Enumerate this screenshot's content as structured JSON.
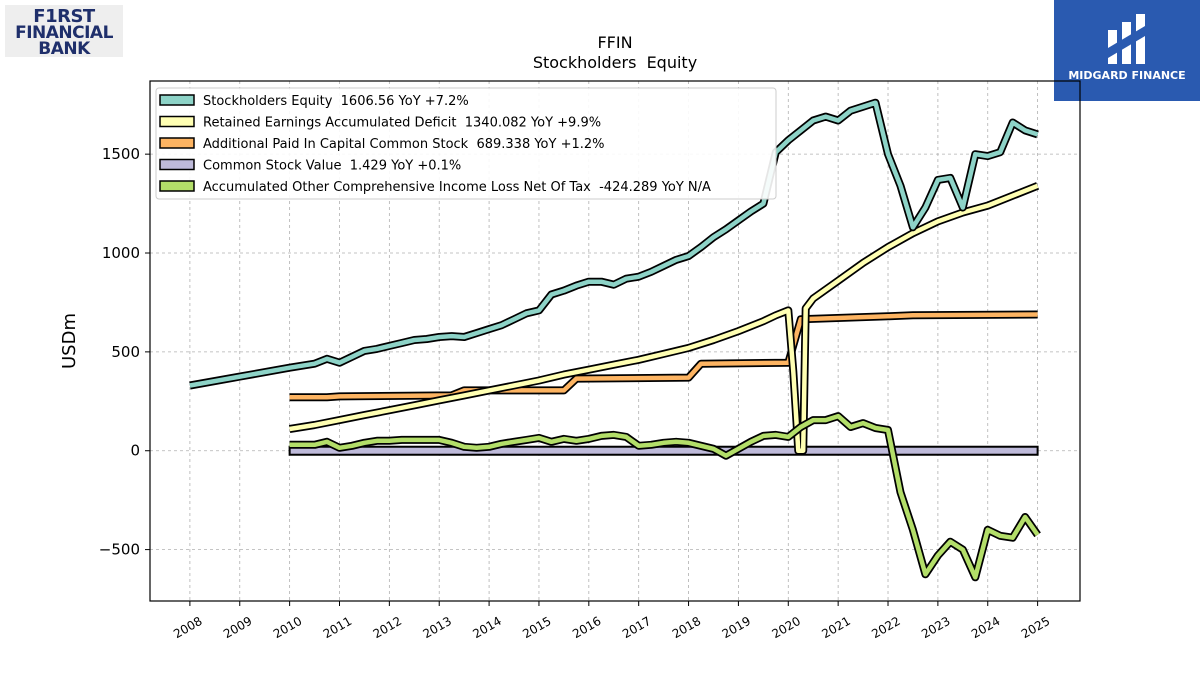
{
  "logos": {
    "left": {
      "lines": [
        "F1RST",
        "FINANCIAL",
        "BANK"
      ]
    },
    "right": {
      "name": "MIDGARD FINANCE"
    }
  },
  "chart_data": {
    "type": "line",
    "title": "FFIN",
    "subtitle": "Stockholders  Equity",
    "ylabel": "USDm",
    "xlabel": "",
    "xlim": [
      2007.2,
      2025.85
    ],
    "ylim": [
      -760,
      1870
    ],
    "x_ticks": [
      2008,
      2009,
      2010,
      2011,
      2012,
      2013,
      2014,
      2015,
      2016,
      2017,
      2018,
      2019,
      2020,
      2021,
      2022,
      2023,
      2024,
      2025
    ],
    "y_ticks": [
      -500,
      0,
      500,
      1000,
      1500
    ],
    "y_tick_labels": [
      "−500",
      "0",
      "500",
      "1000",
      "1500"
    ],
    "grid": true,
    "legend_position": "top-left",
    "series": [
      {
        "name": "Stockholders Equity  1606.56 YoY +7.2%",
        "color": "#8dd3c7",
        "x": [
          2008.0,
          2009.0,
          2010.0,
          2010.5,
          2010.75,
          2011.0,
          2011.25,
          2011.5,
          2011.75,
          2012.0,
          2012.25,
          2012.5,
          2012.75,
          2013.0,
          2013.25,
          2013.5,
          2013.75,
          2014.0,
          2014.25,
          2014.5,
          2014.75,
          2015.0,
          2015.25,
          2015.5,
          2015.75,
          2016.0,
          2016.25,
          2016.5,
          2016.75,
          2017.0,
          2017.25,
          2017.5,
          2017.75,
          2018.0,
          2018.25,
          2018.5,
          2018.75,
          2019.0,
          2019.25,
          2019.5,
          2019.75,
          2020.0,
          2020.25,
          2020.5,
          2020.75,
          2021.0,
          2021.25,
          2021.5,
          2021.75,
          2022.0,
          2022.25,
          2022.5,
          2022.75,
          2023.0,
          2023.25,
          2023.5,
          2023.75,
          2024.0,
          2024.25,
          2024.5,
          2024.75,
          2025.0
        ],
        "y": [
          330,
          375,
          420,
          440,
          465,
          445,
          475,
          505,
          515,
          530,
          545,
          560,
          565,
          575,
          580,
          575,
          595,
          615,
          635,
          665,
          695,
          710,
          790,
          810,
          835,
          855,
          855,
          840,
          870,
          880,
          905,
          935,
          965,
          985,
          1030,
          1080,
          1120,
          1165,
          1210,
          1250,
          1510,
          1570,
          1620,
          1670,
          1690,
          1670,
          1720,
          1740,
          1760,
          1500,
          1340,
          1130,
          1230,
          1370,
          1380,
          1230,
          1500,
          1490,
          1510,
          1660,
          1620,
          1600
        ]
      },
      {
        "name": "Retained Earnings Accumulated Deficit  1340.082 YoY +9.9%",
        "color": "#ffffb3",
        "x": [
          2010.0,
          2010.5,
          2011.0,
          2011.5,
          2012.0,
          2012.5,
          2013.0,
          2013.5,
          2014.0,
          2014.5,
          2015.0,
          2015.5,
          2016.0,
          2016.5,
          2017.0,
          2017.5,
          2018.0,
          2018.5,
          2019.0,
          2019.5,
          2019.75,
          2020.0,
          2020.1,
          2020.2,
          2020.3,
          2020.35,
          2020.5,
          2021.0,
          2021.5,
          2022.0,
          2022.5,
          2023.0,
          2023.5,
          2024.0,
          2024.5,
          2025.0
        ],
        "y": [
          110,
          130,
          155,
          180,
          205,
          230,
          255,
          280,
          305,
          330,
          355,
          385,
          410,
          435,
          460,
          490,
          520,
          560,
          605,
          655,
          685,
          710,
          400,
          0,
          0,
          720,
          770,
          860,
          950,
          1030,
          1100,
          1160,
          1205,
          1240,
          1290,
          1340
        ]
      },
      {
        "name": "Additional Paid In Capital Common Stock  689.338 YoY +1.2%",
        "color": "#fdb462",
        "x": [
          2010.0,
          2010.75,
          2011.0,
          2013.25,
          2013.5,
          2015.5,
          2015.75,
          2018.0,
          2018.25,
          2020.0,
          2020.25,
          2022.0,
          2022.5,
          2025.0
        ],
        "y": [
          270,
          270,
          275,
          280,
          305,
          305,
          365,
          370,
          440,
          445,
          665,
          680,
          685,
          689
        ]
      },
      {
        "name": "Common Stock Value  1.429 YoY +0.1%",
        "color": "#bebada",
        "x": [
          2010.0,
          2025.0
        ],
        "y": [
          0,
          1.4
        ]
      },
      {
        "name": "Accumulated Other Comprehensive Income Loss Net Of Tax  -424.289 YoY N/A",
        "color": "#b3de69",
        "x": [
          2010.0,
          2010.5,
          2010.75,
          2011.0,
          2011.25,
          2011.5,
          2011.75,
          2012.0,
          2012.25,
          2012.5,
          2012.75,
          2013.0,
          2013.25,
          2013.5,
          2013.75,
          2014.0,
          2014.25,
          2014.5,
          2014.75,
          2015.0,
          2015.25,
          2015.5,
          2015.75,
          2016.0,
          2016.25,
          2016.5,
          2016.75,
          2017.0,
          2017.25,
          2017.5,
          2017.75,
          2018.0,
          2018.25,
          2018.5,
          2018.75,
          2019.0,
          2019.25,
          2019.5,
          2019.75,
          2020.0,
          2020.25,
          2020.5,
          2020.75,
          2021.0,
          2021.25,
          2021.5,
          2021.75,
          2022.0,
          2022.25,
          2022.5,
          2022.75,
          2023.0,
          2023.25,
          2023.5,
          2023.75,
          2024.0,
          2024.25,
          2024.5,
          2024.75,
          2025.0
        ],
        "y": [
          30,
          30,
          45,
          15,
          25,
          40,
          50,
          50,
          55,
          55,
          55,
          55,
          40,
          20,
          15,
          20,
          35,
          45,
          55,
          65,
          45,
          60,
          50,
          60,
          75,
          80,
          70,
          25,
          30,
          40,
          45,
          40,
          25,
          10,
          -25,
          10,
          45,
          75,
          80,
          70,
          120,
          155,
          155,
          175,
          120,
          140,
          115,
          105,
          -210,
          -400,
          -625,
          -530,
          -460,
          -500,
          -640,
          -400,
          -430,
          -440,
          -335,
          -425
        ]
      }
    ]
  }
}
